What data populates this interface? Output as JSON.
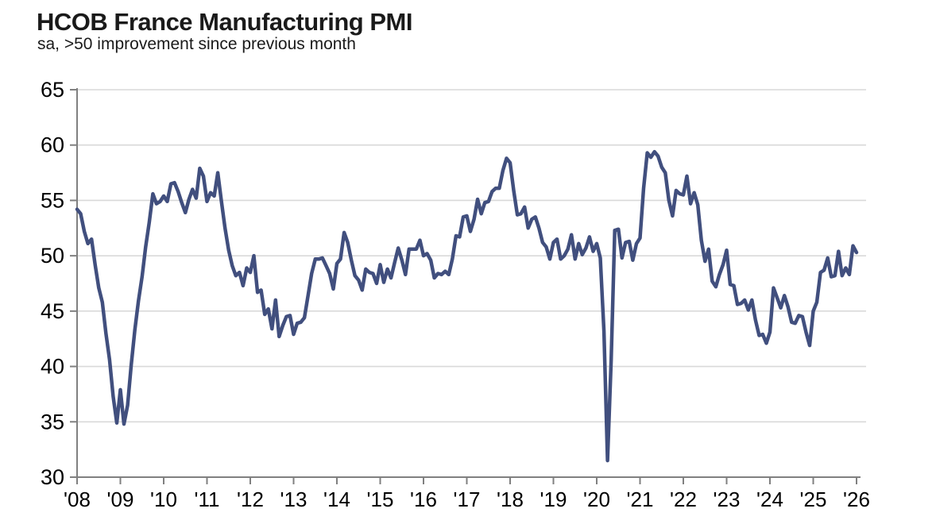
{
  "header": {
    "title": "HCOB France Manufacturing PMI",
    "subtitle": "sa, >50 improvement since previous month"
  },
  "chart_data": {
    "type": "line",
    "title": "HCOB France Manufacturing PMI",
    "subtitle": "sa, >50 improvement since previous month",
    "ylabel": "",
    "xlabel": "",
    "ylim": [
      30,
      65
    ],
    "y_ticks": [
      30,
      35,
      40,
      45,
      50,
      55,
      60,
      65
    ],
    "x_tick_labels": [
      "'08",
      "'09",
      "'10",
      "'11",
      "'12",
      "'13",
      "'14",
      "'15",
      "'16",
      "'17",
      "'18",
      "'19",
      "'20",
      "'21",
      "'22",
      "'23",
      "'24",
      "'25",
      "'26"
    ],
    "grid": "horizontal",
    "legend": "none",
    "line_color": "#414F7E",
    "gridline_color": "#D9D9D9",
    "axis_color": "#808080",
    "text_color": "#000000",
    "series": [
      {
        "name": "France Manufacturing PMI",
        "frequency": "monthly",
        "start": "2008-01",
        "end": "2026-01",
        "values": [
          54.2,
          53.8,
          52.2,
          51.1,
          51.5,
          49.2,
          47.1,
          45.8,
          43.0,
          40.6,
          37.3,
          34.9,
          37.9,
          34.8,
          36.5,
          40.1,
          43.3,
          45.9,
          48.1,
          50.8,
          53.0,
          55.6,
          54.7,
          54.9,
          55.4,
          54.9,
          56.5,
          56.6,
          55.8,
          54.8,
          53.9,
          55.1,
          56.0,
          55.2,
          57.9,
          57.2,
          54.9,
          55.7,
          55.4,
          57.5,
          54.9,
          52.5,
          50.5,
          49.1,
          48.2,
          48.5,
          47.3,
          48.9,
          48.5,
          50.0,
          46.7,
          46.9,
          44.7,
          45.2,
          43.4,
          46.0,
          42.7,
          43.7,
          44.5,
          44.6,
          42.9,
          43.9,
          44.0,
          44.4,
          46.4,
          48.4,
          49.7,
          49.7,
          49.8,
          49.1,
          48.4,
          47.0,
          49.3,
          49.7,
          52.1,
          51.2,
          49.6,
          48.2,
          47.8,
          46.9,
          48.8,
          48.5,
          48.4,
          47.5,
          49.2,
          47.6,
          48.8,
          48.0,
          49.4,
          50.7,
          49.6,
          48.3,
          50.6,
          50.6,
          50.6,
          51.4,
          50.0,
          50.2,
          49.6,
          48.0,
          48.4,
          48.3,
          48.6,
          48.3,
          49.7,
          51.8,
          51.7,
          53.5,
          53.6,
          52.2,
          53.3,
          55.1,
          53.8,
          54.8,
          54.9,
          55.8,
          56.1,
          56.1,
          57.7,
          58.8,
          58.4,
          55.9,
          53.7,
          53.8,
          54.4,
          52.5,
          53.3,
          53.5,
          52.5,
          51.2,
          50.8,
          49.7,
          51.2,
          51.5,
          49.7,
          50.0,
          50.6,
          51.9,
          49.7,
          51.1,
          50.1,
          50.7,
          51.7,
          50.4,
          51.1,
          49.8,
          43.2,
          31.5,
          40.6,
          52.3,
          52.4,
          49.8,
          51.2,
          51.3,
          49.6,
          51.1,
          51.6,
          56.1,
          59.3,
          58.9,
          59.4,
          59.0,
          58.0,
          57.5,
          55.0,
          53.6,
          55.9,
          55.6,
          55.5,
          57.2,
          54.7,
          55.7,
          54.6,
          51.4,
          49.5,
          50.6,
          47.7,
          47.2,
          48.3,
          49.2,
          50.5,
          47.4,
          47.3,
          45.6,
          45.7,
          46.0,
          45.1,
          46.0,
          44.2,
          42.8,
          42.9,
          42.1,
          43.1,
          47.1,
          46.2,
          45.3,
          46.4,
          45.4,
          44.0,
          43.9,
          44.6,
          44.5,
          43.1,
          41.9,
          45.0,
          45.8,
          48.5,
          48.7,
          49.8,
          48.1,
          48.2,
          50.4,
          48.2,
          48.9,
          48.3,
          50.9,
          50.3
        ]
      }
    ]
  }
}
